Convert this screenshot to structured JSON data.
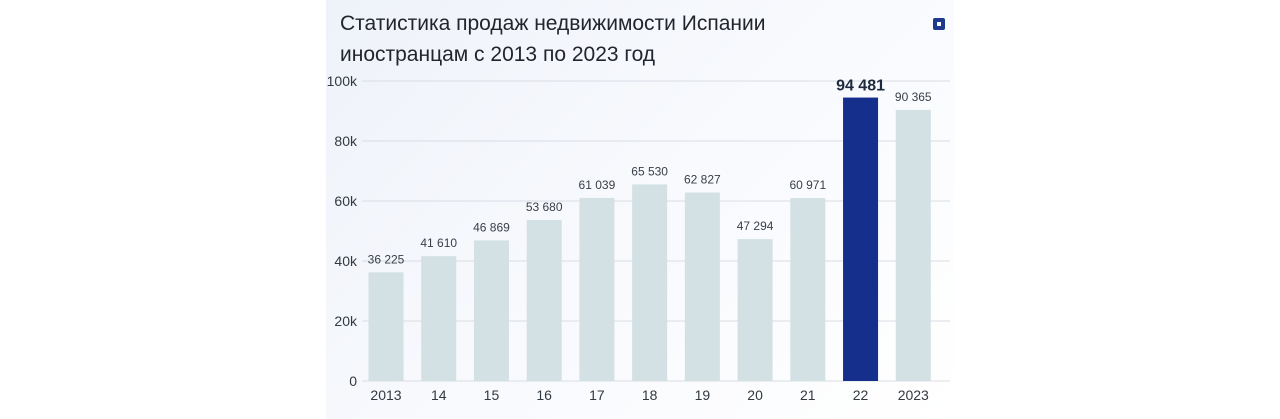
{
  "title": "Статистика продаж недвижимости Испании иностранцам с 2013 по 2023 год",
  "menu_icon": "square-menu-icon",
  "colors": {
    "bar": "#d3e0e4",
    "highlight": "#15308c",
    "grid": "#d9dde3"
  },
  "chart_data": {
    "type": "bar",
    "title": "Статистика продаж недвижимости Испании иностранцам с 2013 по 2023 год",
    "categories": [
      "2013",
      "14",
      "15",
      "16",
      "17",
      "18",
      "19",
      "20",
      "21",
      "22",
      "2023"
    ],
    "values": [
      36225,
      41610,
      46869,
      53680,
      61039,
      65530,
      62827,
      47294,
      60971,
      94481,
      90365
    ],
    "value_labels": [
      "36 225",
      "41 610",
      "46 869",
      "53 680",
      "61 039",
      "65 530",
      "62 827",
      "47 294",
      "60 971",
      "94 481",
      "90 365"
    ],
    "highlight_index": 9,
    "y_ticks": [
      0,
      20000,
      40000,
      60000,
      80000,
      100000
    ],
    "y_tick_labels": [
      "0",
      "20k",
      "40k",
      "60k",
      "80k",
      "100k"
    ],
    "ylim": [
      0,
      100000
    ],
    "xlabel": "",
    "ylabel": "",
    "grid": true
  }
}
